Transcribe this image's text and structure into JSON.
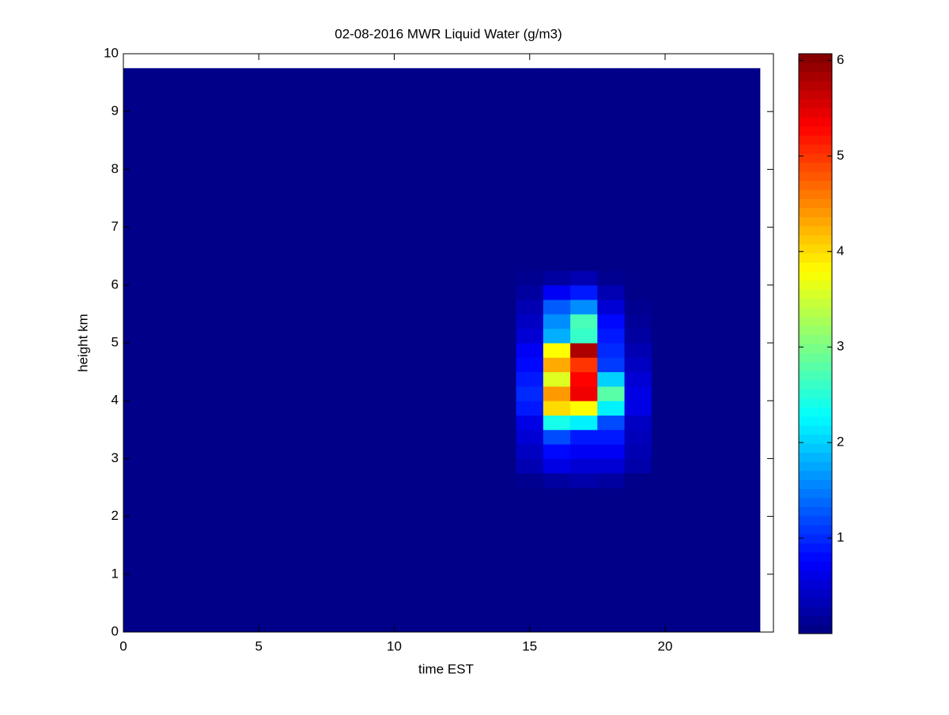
{
  "chart_data": {
    "type": "heatmap",
    "title": "02-08-2016 MWR Liquid Water (g/m3)",
    "xlabel": "time EST",
    "ylabel": "height km",
    "x": [
      0,
      14.5,
      15.5,
      16.5,
      17.5,
      18.5,
      19.5,
      23.5
    ],
    "y": [
      0,
      2.5,
      2.75,
      3.0,
      3.25,
      3.5,
      3.75,
      4.0,
      4.25,
      4.5,
      4.75,
      5.0,
      5.25,
      5.5,
      5.75,
      6.0,
      6.25,
      9.75
    ],
    "values": [
      [
        0.05,
        0.05,
        0.05,
        0.05,
        0.05,
        0.05,
        0.05
      ],
      [
        0.05,
        0.1,
        0.2,
        0.25,
        0.2,
        0.05,
        0.05
      ],
      [
        0.05,
        0.3,
        0.6,
        0.5,
        0.5,
        0.25,
        0.05
      ],
      [
        0.05,
        0.4,
        0.8,
        0.7,
        0.7,
        0.3,
        0.05
      ],
      [
        0.05,
        0.5,
        1.2,
        0.9,
        0.9,
        0.35,
        0.05
      ],
      [
        0.05,
        0.6,
        2.4,
        2.2,
        1.2,
        0.4,
        0.05
      ],
      [
        0.05,
        0.9,
        4.0,
        3.8,
        2.2,
        0.6,
        0.05
      ],
      [
        0.05,
        1.0,
        4.4,
        5.4,
        2.8,
        0.6,
        0.05
      ],
      [
        0.05,
        0.9,
        3.6,
        5.3,
        2.0,
        0.5,
        0.05
      ],
      [
        0.05,
        0.8,
        4.3,
        5.0,
        1.1,
        0.4,
        0.05
      ],
      [
        0.05,
        0.7,
        3.8,
        5.8,
        1.0,
        0.3,
        0.05
      ],
      [
        0.05,
        0.5,
        1.8,
        2.6,
        0.9,
        0.2,
        0.05
      ],
      [
        0.05,
        0.4,
        1.6,
        2.7,
        0.8,
        0.15,
        0.05
      ],
      [
        0.05,
        0.3,
        1.3,
        1.6,
        0.5,
        0.1,
        0.05
      ],
      [
        0.05,
        0.2,
        0.7,
        0.9,
        0.3,
        0.05,
        0.05
      ],
      [
        0.05,
        0.1,
        0.2,
        0.3,
        0.1,
        0.05,
        0.05
      ],
      [
        0.05,
        0.05,
        0.05,
        0.05,
        0.05,
        0.05,
        0.05
      ]
    ],
    "xlim": [
      0,
      24
    ],
    "ylim": [
      0,
      10
    ],
    "xticks": [
      0,
      5,
      10,
      15,
      20
    ],
    "yticks": [
      0,
      1,
      2,
      3,
      4,
      5,
      6,
      7,
      8,
      9,
      10
    ],
    "colormap": "jet",
    "clim": [
      0,
      6.07
    ],
    "cticks": [
      1,
      2,
      3,
      4,
      5,
      6
    ]
  }
}
